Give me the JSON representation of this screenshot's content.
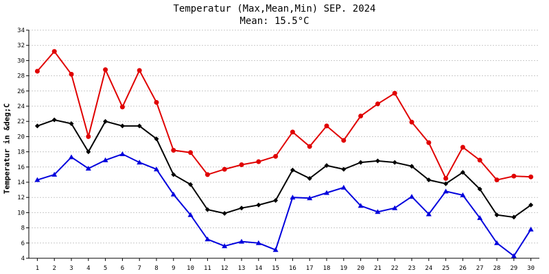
{
  "chart_data": {
    "type": "line",
    "title": "Temperatur (Max,Mean,Min) SEP. 2024",
    "subtitle": "Mean: 15.5°C",
    "xlabel": "",
    "ylabel": "Temperatur in &deg;C",
    "x": [
      1,
      2,
      3,
      4,
      5,
      6,
      7,
      8,
      9,
      10,
      11,
      12,
      13,
      14,
      15,
      16,
      17,
      18,
      19,
      20,
      21,
      22,
      23,
      24,
      25,
      26,
      27,
      28,
      29,
      30
    ],
    "ylim": [
      4,
      34
    ],
    "yticks": [
      4,
      6,
      8,
      10,
      12,
      14,
      16,
      18,
      20,
      22,
      24,
      26,
      28,
      30,
      32,
      34
    ],
    "grid": true,
    "series": [
      {
        "key": "max",
        "color": "#e00000",
        "marker": "circle",
        "values": [
          28.6,
          31.2,
          28.2,
          20.0,
          28.8,
          23.9,
          28.7,
          24.5,
          18.2,
          17.9,
          15.0,
          15.7,
          16.3,
          16.7,
          17.4,
          20.6,
          18.7,
          21.4,
          19.5,
          22.7,
          24.3,
          25.7,
          21.9,
          19.2,
          14.5,
          18.6,
          16.9,
          14.3,
          14.8,
          14.7
        ]
      },
      {
        "key": "mean",
        "color": "#000000",
        "marker": "diamond",
        "values": [
          21.4,
          22.2,
          21.7,
          18.0,
          22.0,
          21.4,
          21.4,
          19.7,
          15.0,
          13.7,
          10.4,
          9.9,
          10.6,
          11.0,
          11.6,
          15.6,
          14.5,
          16.2,
          15.7,
          16.6,
          16.8,
          16.6,
          16.1,
          14.3,
          13.8,
          15.3,
          13.1,
          9.7,
          9.4,
          11.0
        ]
      },
      {
        "key": "min",
        "color": "#0000dd",
        "marker": "triangle",
        "values": [
          14.3,
          15.0,
          17.3,
          15.8,
          16.9,
          17.7,
          16.6,
          15.7,
          12.4,
          9.7,
          6.5,
          5.6,
          6.2,
          6.0,
          5.1,
          12.0,
          11.9,
          12.6,
          13.3,
          10.9,
          10.1,
          10.6,
          12.1,
          9.8,
          12.8,
          12.3,
          9.3,
          6.0,
          4.3,
          7.8
        ]
      }
    ]
  }
}
